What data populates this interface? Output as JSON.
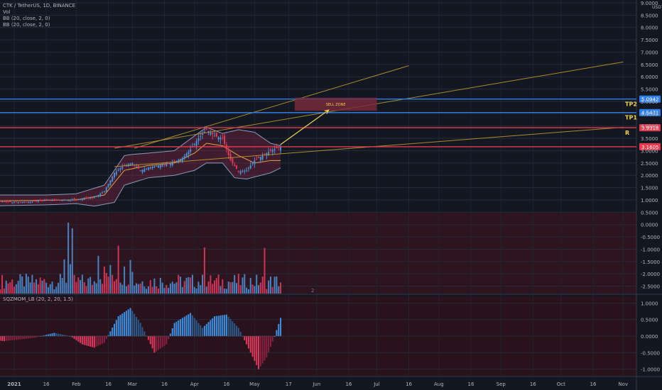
{
  "header": {
    "symbol": "CTK / TetherUS, 1D, BINANCE",
    "vol": "Vol",
    "bb1": "BB (20, close, 2, 0)",
    "bb2": "BB (20, close, 2, 0)"
  },
  "osc_header": {
    "title": "SQZMOM_LB (20, 2, 20, 1.5)"
  },
  "colors": {
    "bg": "#131722",
    "bull": "#4a8fd4",
    "bear": "#e0395d",
    "tp": "#2f7fe8",
    "res": "#e63950",
    "sup": "#b8972f",
    "bb": "#8a9bbf",
    "bb_mid": "#e0a24a",
    "zone": "#7a2a3c",
    "arrow": "#f2d24a"
  },
  "price_axis": {
    "currency": "USDT",
    "ticks": [
      "9.0000",
      "8.5000",
      "8.0000",
      "7.5000",
      "7.0000",
      "6.5000",
      "6.0000",
      "5.5000",
      "5.0000",
      "4.5000",
      "4.0000",
      "3.5000",
      "3.0000",
      "2.5000",
      "2.0000",
      "1.5000",
      "1.0000",
      "0.5000",
      "0.0000",
      "-0.5000",
      "-1.0000",
      "-1.5000",
      "-2.0000",
      "-2.5000"
    ],
    "tick_values": [
      9,
      8.5,
      8,
      7.5,
      7,
      6.5,
      6,
      5.5,
      5,
      4.5,
      4,
      3.5,
      3,
      2.5,
      2,
      1.5,
      1,
      0.5,
      0,
      -0.5,
      -1,
      -1.5,
      -2,
      -2.5
    ]
  },
  "osc_axis": {
    "ticks": [
      "1.0000",
      "0.5000",
      "0.0000",
      "-0.5000",
      "-1.0000"
    ],
    "tick_values": [
      1,
      0.5,
      0,
      -0.5,
      -1
    ]
  },
  "time_axis": {
    "labels": [
      "16",
      "2021",
      "16",
      "Feb",
      "16",
      "Mar",
      "16",
      "Apr",
      "16",
      "May",
      "17",
      "Jun",
      "16",
      "Jul",
      "16",
      "Aug",
      "16",
      "Sep",
      "16",
      "Oct",
      "16",
      "Nov"
    ],
    "label_days": [
      -16,
      0,
      16,
      31,
      47,
      59,
      75,
      90,
      106,
      120,
      137,
      151,
      167,
      181,
      197,
      212,
      228,
      243,
      259,
      273,
      289,
      304
    ]
  },
  "levels": [
    {
      "label": "TP2",
      "value": 5.0942,
      "value_text": "5.0942",
      "kind": "tp"
    },
    {
      "label": "TP1",
      "value": 4.5471,
      "value_text": "4.5471",
      "kind": "tp"
    },
    {
      "label": "R",
      "value": 3.9318,
      "value_text": "3.9318",
      "kind": "res"
    },
    {
      "label": "",
      "value": 3.1605,
      "value_text": "3.1605",
      "kind": "res"
    }
  ],
  "sell_zone": {
    "label": "SELL ZONE",
    "day_from": 140,
    "day_to": 181,
    "price_from": 4.62,
    "price_to": 5.15
  },
  "arrow": {
    "day_from": 133,
    "price_from": 3.25,
    "day_to": 157,
    "price_to": 4.65
  },
  "volume_pane_label": "2",
  "chart_data": {
    "type": "candlestick",
    "x_unit": "days from 2021-01-01",
    "price_series": {
      "name": "CTK / TetherUS",
      "days": [
        -18,
        -8,
        0,
        8,
        16,
        24,
        31,
        35,
        40,
        45,
        50,
        55,
        59,
        63,
        67,
        72,
        76,
        80,
        84,
        88,
        92,
        96,
        100,
        104,
        108,
        112,
        116,
        120,
        124,
        128,
        133
      ],
      "close": [
        1.0,
        0.95,
        0.9,
        0.92,
        1.0,
        1.0,
        1.02,
        1.05,
        1.1,
        1.35,
        2.1,
        2.4,
        2.5,
        2.2,
        2.3,
        2.4,
        2.45,
        2.55,
        2.7,
        3.05,
        3.5,
        3.85,
        3.6,
        3.5,
        2.6,
        2.15,
        2.2,
        2.6,
        2.8,
        3.0,
        3.16
      ]
    },
    "bb_upper_days": [
      -18,
      16,
      31,
      45,
      55,
      59,
      67,
      80,
      90,
      96,
      104,
      112,
      120,
      128,
      133
    ],
    "bb_upper": [
      1.2,
      1.2,
      1.25,
      1.6,
      2.8,
      2.85,
      2.9,
      3.0,
      3.6,
      3.95,
      3.7,
      3.85,
      3.75,
      3.3,
      3.2
    ],
    "bb_lower_days": [
      -18,
      16,
      31,
      40,
      50,
      55,
      67,
      80,
      90,
      96,
      104,
      110,
      116,
      128,
      133
    ],
    "bb_lower": [
      0.75,
      0.8,
      0.85,
      0.75,
      0.9,
      1.6,
      1.9,
      2.0,
      2.2,
      2.5,
      2.5,
      1.9,
      1.85,
      2.1,
      2.3
    ],
    "bb_basis_days": [
      -18,
      31,
      45,
      55,
      67,
      80,
      90,
      96,
      104,
      112,
      120,
      128,
      133
    ],
    "bb_basis": [
      0.95,
      1.0,
      1.2,
      2.2,
      2.4,
      2.5,
      2.9,
      3.3,
      3.2,
      2.8,
      2.5,
      2.6,
      2.6
    ],
    "trendlines": [
      {
        "from_day": 50,
        "from": 3.1,
        "to_day": 304,
        "to": 6.6
      },
      {
        "from_day": 50,
        "from": 2.35,
        "to_day": 304,
        "to": 3.95
      },
      {
        "from_day": 60,
        "from": 3.1,
        "to_day": 197,
        "to": 6.45
      }
    ],
    "volume": {
      "note": "relative volume bars per day",
      "max_day": 133
    },
    "oscillator": {
      "name": "SQZMOM_LB (20, 2, 20, 1.5)",
      "days": [
        -18,
        -5,
        0,
        10,
        20,
        28,
        34,
        40,
        45,
        52,
        58,
        63,
        70,
        76,
        80,
        88,
        94,
        100,
        106,
        112,
        118,
        122,
        126,
        130,
        133
      ],
      "values": [
        -0.08,
        -0.15,
        -0.12,
        -0.05,
        0.1,
        0.0,
        -0.25,
        -0.35,
        -0.2,
        0.6,
        0.85,
        0.4,
        -0.5,
        -0.25,
        0.4,
        0.7,
        0.25,
        0.6,
        0.65,
        0.25,
        -0.5,
        -1.0,
        -0.65,
        0.0,
        0.55
      ]
    },
    "y_range_price": [
      -2.8,
      9.0
    ],
    "y_range_osc": [
      -1.2,
      1.2
    ]
  }
}
